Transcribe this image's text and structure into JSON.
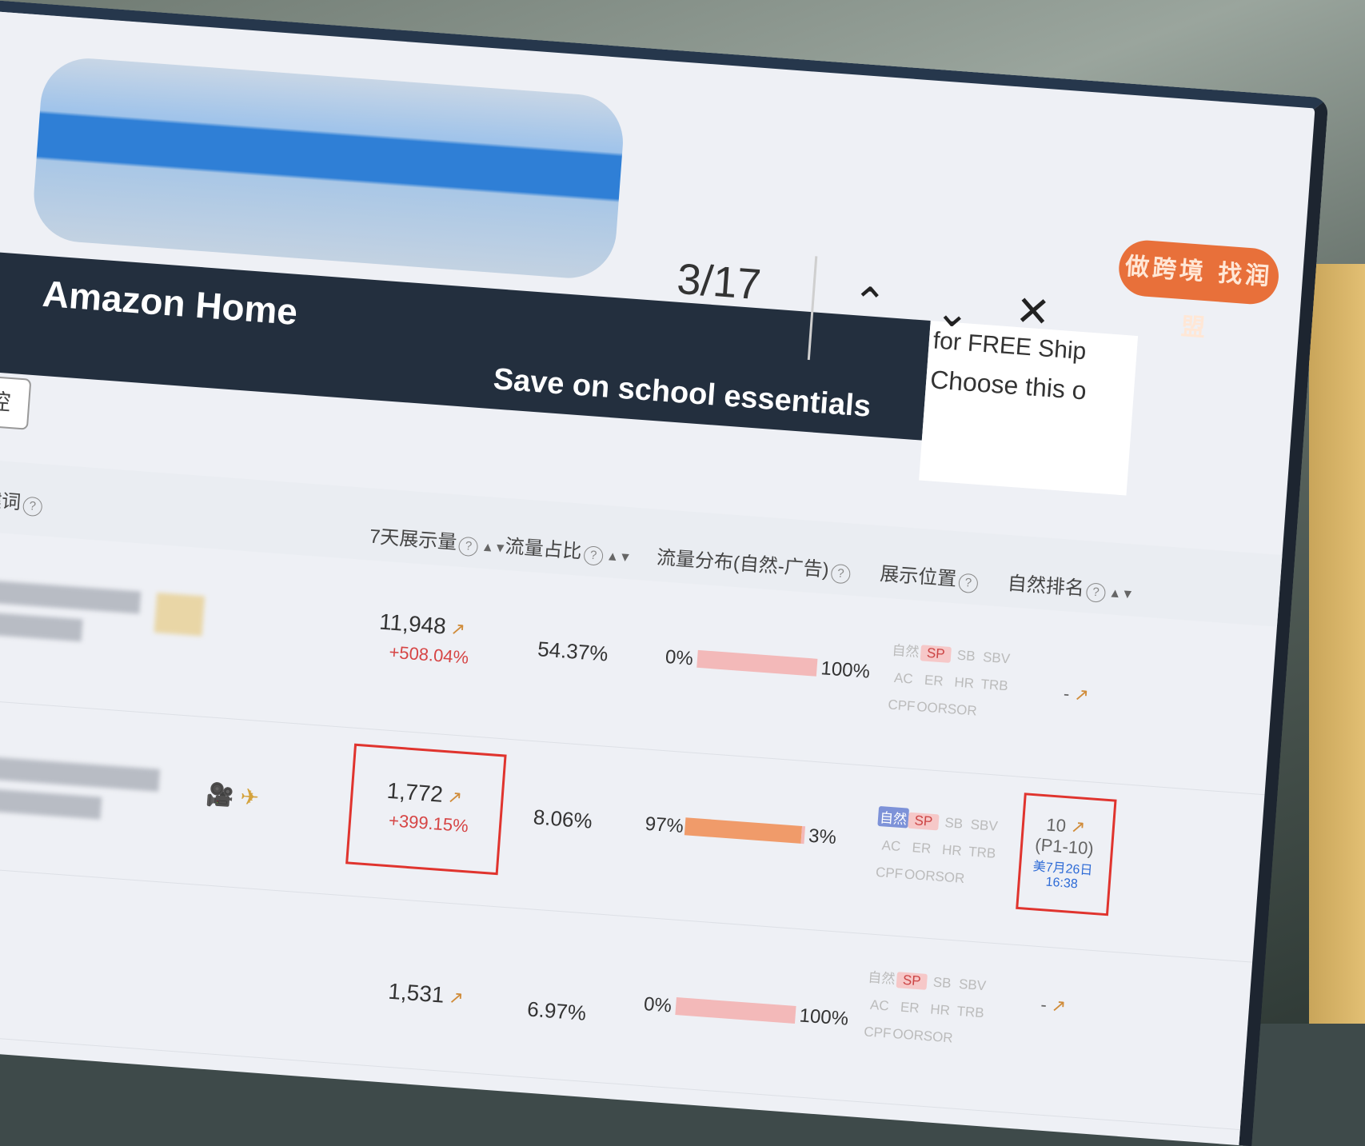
{
  "find": {
    "count": "3/17",
    "prev_label": "^",
    "next_label": "v",
    "close_label": "X"
  },
  "brand": {
    "badge": "做跨境 找润盟"
  },
  "banner": {
    "title": "Amazon Home",
    "promo": "Save on school essentials",
    "side_line1": "for FREE Ship",
    "side_line2": "Choose this o"
  },
  "toolbar": {
    "monitor_label": "监控"
  },
  "table": {
    "headers": {
      "keyword": "关键词",
      "impressions": "7天展示量",
      "share": "流量占比",
      "distribution": "流量分布(自然-广告)",
      "position": "展示位置",
      "rank": "自然排名"
    },
    "position_tags": [
      "自然",
      "SP",
      "SB",
      "SBV",
      "AC",
      "ER",
      "HR",
      "TRB",
      "CPF",
      "OOR",
      "SOR"
    ],
    "rows": [
      {
        "impressions": "11,948",
        "growth": "+508.04%",
        "share": "54.37%",
        "dist_left": "0%",
        "dist_right": "100%",
        "natural_ratio": 0.0,
        "active_tags": [
          "SP"
        ],
        "rank": "-"
      },
      {
        "impressions": "1,772",
        "growth": "+399.15%",
        "share": "8.06%",
        "dist_left": "97%",
        "dist_right": "3%",
        "natural_ratio": 0.97,
        "active_tags": [
          "自然",
          "SP"
        ],
        "rank": "10",
        "rank_page": "(P1-10)",
        "rank_time": "美7月26日 16:38"
      },
      {
        "impressions": "1,531",
        "growth": "",
        "share": "6.97%",
        "dist_left": "0%",
        "dist_right": "100%",
        "natural_ratio": 0.0,
        "active_tags": [
          "SP"
        ],
        "rank": "-"
      }
    ]
  },
  "colors": {
    "banner": "#232f3e",
    "accent": "#e8703a",
    "highlight": "#e0342e",
    "ad_bar": "#f3b9b9",
    "natural_bar": "#f09b6a"
  }
}
